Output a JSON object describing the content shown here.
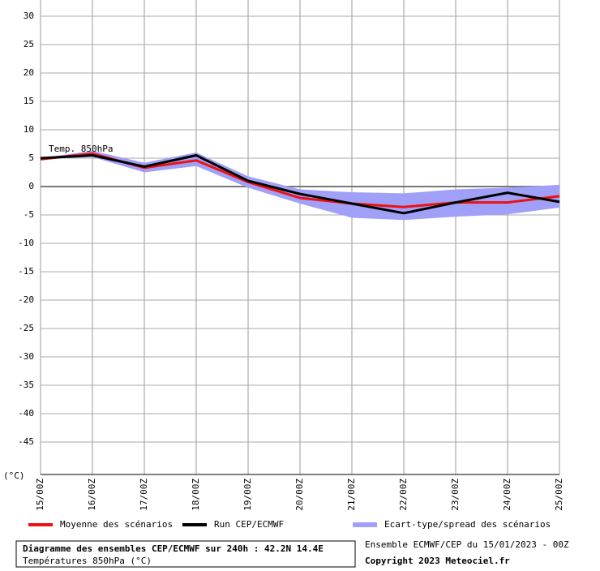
{
  "chart_data": {
    "type": "line",
    "title": "Diagramme des ensembles CEP/ECMWF sur 240h : 42.2N 14.4E",
    "subtitle": "Températures 850hPa (°C)",
    "source": "Ensemble ECMWF/CEP du 15/01/2023 - 00Z",
    "copyright": "Copyright 2023 Meteociel.fr",
    "y_label": "(°C)",
    "annotation": "Temp. 850hPa",
    "categories": [
      "15/00Z",
      "16/00Z",
      "17/00Z",
      "18/00Z",
      "19/00Z",
      "20/00Z",
      "21/00Z",
      "22/00Z",
      "23/00Z",
      "24/00Z",
      "25/00Z"
    ],
    "series": [
      {
        "name": "Ecart-type/spread des scénarios",
        "color": "#a0a0f8",
        "high": [
          5,
          6.3,
          4.2,
          6.0,
          1.8,
          -0.5,
          -1.0,
          -1.2,
          -0.5,
          -0.2,
          0.3
        ],
        "low": [
          4.8,
          5.2,
          2.5,
          3.6,
          -0.2,
          -3.0,
          -5.5,
          -5.9,
          -5.3,
          -4.9,
          -3.7
        ]
      },
      {
        "name": "Moyenne des scénarios",
        "color": "#ee1111",
        "values": [
          4.8,
          5.8,
          3.3,
          4.6,
          0.8,
          -2,
          -3,
          -3.6,
          -2.8,
          -2.8,
          -1.7
        ]
      },
      {
        "name": "Run CEP/ECMWF",
        "color": "#000000",
        "values": [
          5,
          5.5,
          3.5,
          5.5,
          1,
          -1.3,
          -3,
          -4.7,
          -2.8,
          -1.1,
          -2.7
        ]
      }
    ],
    "legend_order": [
      1,
      2,
      0
    ],
    "ylim": [
      -50,
      30
    ],
    "yticks": [
      30,
      25,
      20,
      15,
      10,
      5,
      0,
      -5,
      -10,
      -15,
      -20,
      -25,
      -30,
      -35,
      -40,
      -45
    ],
    "grid": true
  }
}
